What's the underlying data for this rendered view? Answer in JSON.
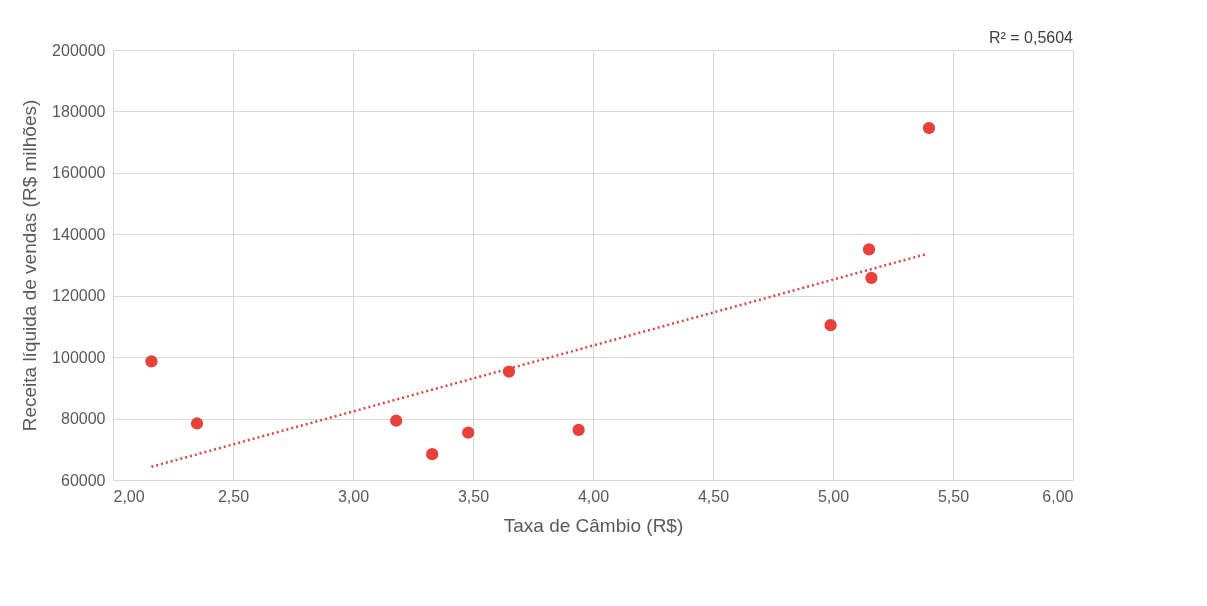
{
  "chart_data": {
    "type": "scatter",
    "xlabel": "Taxa de Câmbio (R$)",
    "ylabel": "Receita líquida de vendas (R$ milhões)",
    "annotations": [
      "R² = 0,5604"
    ],
    "series": [
      {
        "type": "scatter",
        "color": "#e8403a",
        "marker": "circle",
        "x": [
          2.16,
          2.35,
          3.18,
          3.33,
          3.48,
          3.65,
          3.94,
          4.99,
          5.15,
          5.16,
          5.4
        ],
        "values": [
          98600,
          78400,
          79300,
          68400,
          75400,
          95300,
          76300,
          110400,
          135100,
          125800,
          174600
        ]
      },
      {
        "type": "line",
        "color": "#e8403a",
        "line_style": "dotted",
        "x": [
          2.16,
          5.39
        ],
        "values": [
          64300,
          133600
        ]
      }
    ],
    "xlim": [
      2.0,
      6.0
    ],
    "xticks": [
      {
        "value": 2.0,
        "label": "2,00"
      },
      {
        "value": 2.5,
        "label": "2,50"
      },
      {
        "value": 3.0,
        "label": "3,00"
      },
      {
        "value": 3.5,
        "label": "3,50"
      },
      {
        "value": 4.0,
        "label": "4,00"
      },
      {
        "value": 4.5,
        "label": "4,50"
      },
      {
        "value": 5.0,
        "label": "5,00"
      },
      {
        "value": 5.5,
        "label": "5,50"
      },
      {
        "value": 6.0,
        "label": "6,00"
      }
    ],
    "ylim": [
      60000,
      200000
    ],
    "yticks": [
      60000,
      80000,
      100000,
      120000,
      140000,
      160000,
      180000,
      200000
    ],
    "grid": true,
    "legend": false
  }
}
